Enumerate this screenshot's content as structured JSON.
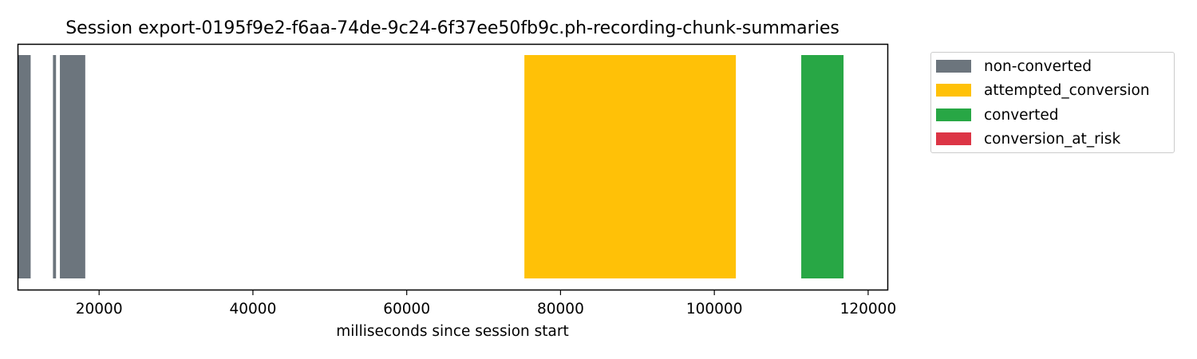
{
  "chart_data": {
    "type": "bar",
    "orientation": "horizontal-timeline",
    "title": "Session export-0195f9e2-f6aa-74de-9c24-6f37ee50fb9c.ph-recording-chunk-summaries",
    "xlabel": "milliseconds since session start",
    "ylabel": "",
    "xlim": [
      9500,
      122500
    ],
    "xticks": [
      20000,
      40000,
      60000,
      80000,
      100000,
      120000
    ],
    "xtick_labels": [
      "20000",
      "40000",
      "60000",
      "80000",
      "100000",
      "120000"
    ],
    "grid": false,
    "legend_position": "outside-right",
    "segments": [
      {
        "category": "non-converted",
        "start": 9500,
        "end": 11100
      },
      {
        "category": "non-converted",
        "start": 14000,
        "end": 14400
      },
      {
        "category": "non-converted",
        "start": 14900,
        "end": 18200
      },
      {
        "category": "attempted_conversion",
        "start": 75300,
        "end": 102800
      },
      {
        "category": "converted",
        "start": 111300,
        "end": 116800
      }
    ],
    "legend": [
      {
        "name": "non-converted",
        "color": "#6c757d"
      },
      {
        "name": "attempted_conversion",
        "color": "#ffc107"
      },
      {
        "name": "converted",
        "color": "#28a745"
      },
      {
        "name": "conversion_at_risk",
        "color": "#dc3545"
      }
    ]
  }
}
